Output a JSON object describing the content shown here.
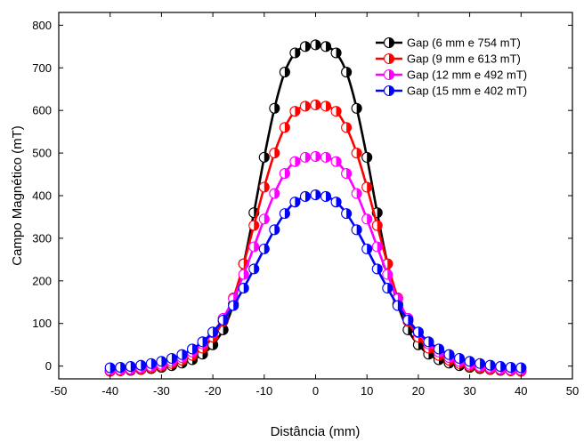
{
  "chart_data": {
    "type": "line",
    "xlabel": "Distância (mm)",
    "ylabel": "Campo Magnético (mT)",
    "xlim": [
      -50,
      50
    ],
    "ylim": [
      -30,
      830
    ],
    "xticks": [
      -50,
      -40,
      -30,
      -20,
      -10,
      0,
      10,
      20,
      30,
      40,
      50
    ],
    "yticks": [
      0,
      100,
      200,
      300,
      400,
      500,
      600,
      700,
      800
    ],
    "grid": false,
    "legend_position": "top-right",
    "markers": "half-filled circles",
    "x": [
      -40,
      -38,
      -36,
      -34,
      -32,
      -30,
      -28,
      -26,
      -24,
      -22,
      -20,
      -18,
      -16,
      -14,
      -12,
      -10,
      -8,
      -6,
      -4,
      -2,
      0,
      2,
      4,
      6,
      8,
      10,
      12,
      14,
      16,
      18,
      20,
      22,
      24,
      26,
      28,
      30,
      32,
      34,
      36,
      38,
      40
    ],
    "series": [
      {
        "name": "Gap (6 mm e 754 mT)",
        "color": "#000000",
        "peak": 754,
        "values": [
          -12,
          -11,
          -10,
          -8,
          -6,
          -3,
          1,
          7,
          15,
          28,
          50,
          85,
          145,
          240,
          360,
          490,
          605,
          690,
          735,
          750,
          754,
          750,
          735,
          690,
          605,
          490,
          360,
          240,
          145,
          85,
          50,
          28,
          15,
          7,
          1,
          -3,
          -6,
          -8,
          -10,
          -11,
          -12
        ]
      },
      {
        "name": "Gap (9 mm e 613 mT)",
        "color": "#ff0000",
        "peak": 613,
        "values": [
          -12,
          -11,
          -9,
          -7,
          -4,
          0,
          6,
          14,
          25,
          42,
          68,
          105,
          160,
          240,
          330,
          420,
          500,
          560,
          598,
          610,
          613,
          610,
          598,
          560,
          500,
          420,
          330,
          240,
          160,
          105,
          68,
          42,
          25,
          14,
          6,
          0,
          -4,
          -7,
          -9,
          -11,
          -12
        ]
      },
      {
        "name": "Gap (12 mm e 492 mT)",
        "color": "#ff00ff",
        "peak": 492,
        "values": [
          -10,
          -9,
          -7,
          -4,
          -1,
          4,
          11,
          20,
          33,
          52,
          78,
          112,
          158,
          215,
          280,
          345,
          405,
          452,
          480,
          490,
          492,
          490,
          480,
          452,
          405,
          345,
          280,
          215,
          158,
          112,
          78,
          52,
          33,
          20,
          11,
          4,
          -1,
          -4,
          -7,
          -9,
          -10
        ]
      },
      {
        "name": "Gap (15 mm e 402 mT)",
        "color": "#0000ff",
        "peak": 402,
        "values": [
          -4,
          -3,
          -1,
          2,
          6,
          11,
          18,
          27,
          40,
          57,
          80,
          108,
          142,
          183,
          228,
          275,
          320,
          358,
          385,
          398,
          402,
          398,
          385,
          358,
          320,
          275,
          228,
          183,
          142,
          108,
          80,
          57,
          40,
          27,
          18,
          11,
          6,
          2,
          -1,
          -3,
          -4
        ]
      }
    ]
  }
}
